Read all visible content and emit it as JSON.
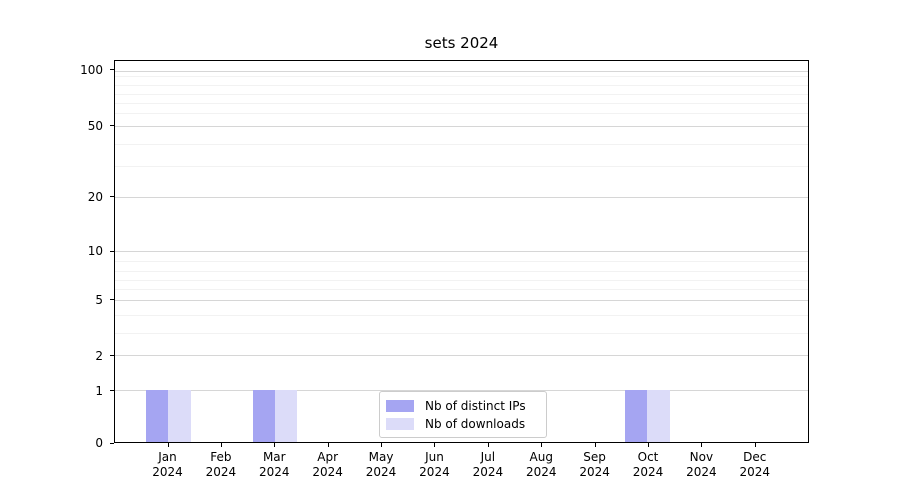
{
  "chart_data": {
    "type": "bar",
    "title": "sets 2024",
    "x_axis": {
      "months": [
        "Jan",
        "Feb",
        "Mar",
        "Apr",
        "May",
        "Jun",
        "Jul",
        "Aug",
        "Sep",
        "Oct",
        "Nov",
        "Dec"
      ],
      "year": "2024"
    },
    "categories": [
      "Jan 2024",
      "Feb 2024",
      "Mar 2024",
      "Apr 2024",
      "May 2024",
      "Jun 2024",
      "Jul 2024",
      "Aug 2024",
      "Sep 2024",
      "Oct 2024",
      "Nov 2024",
      "Dec 2024"
    ],
    "series": [
      {
        "name": "Nb of distinct IPs",
        "color": "#a5a5f2",
        "values": [
          1,
          0,
          1,
          0,
          0,
          0,
          0,
          0,
          0,
          1,
          0,
          0
        ]
      },
      {
        "name": "Nb of downloads",
        "color": "#dcdcf9",
        "values": [
          1,
          0,
          1,
          0,
          0,
          0,
          0,
          0,
          0,
          1,
          0,
          0
        ]
      }
    ],
    "y_axis": {
      "scale": "log-like",
      "ticks": [
        {
          "value": 100,
          "label": "100",
          "pos_pct": 2.61
        },
        {
          "value": 50,
          "label": "50",
          "pos_pct": 17.15
        },
        {
          "value": 20,
          "label": "20",
          "pos_pct": 35.69
        },
        {
          "value": 10,
          "label": "10",
          "pos_pct": 49.87
        },
        {
          "value": 5,
          "label": "5",
          "pos_pct": 62.66
        },
        {
          "value": 2,
          "label": "2",
          "pos_pct": 77.28
        },
        {
          "value": 1,
          "label": "1",
          "pos_pct": 86.34
        },
        {
          "value": 0,
          "label": "0",
          "pos_pct": 100
        }
      ],
      "minor_gridlines_pct": [
        3.92,
        6.27,
        8.62,
        10.97,
        13.58,
        21.67,
        27.68,
        52.4,
        55.01,
        57.44,
        59.87,
        66.58,
        71.36
      ]
    },
    "legend": {
      "position": "lower center"
    },
    "grid": true
  }
}
